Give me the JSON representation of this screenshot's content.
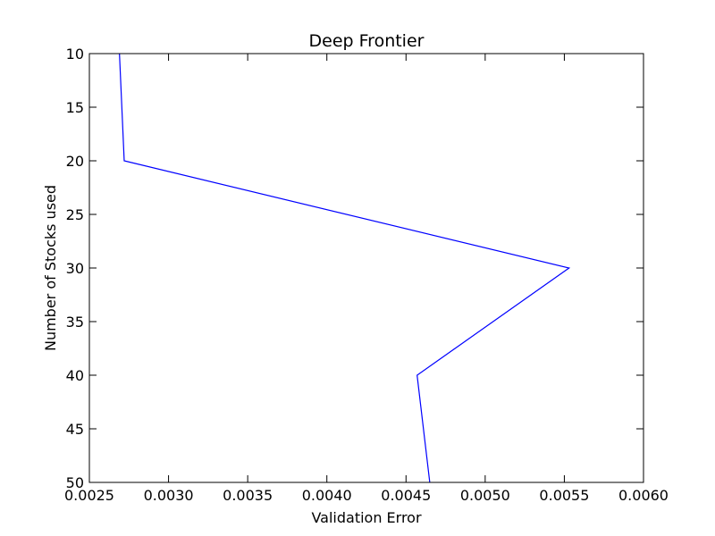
{
  "chart_data": {
    "type": "line",
    "title": "Deep Frontier",
    "xlabel": "Validation Error",
    "ylabel": "Number of Stocks used",
    "xlim": [
      0.0025,
      0.006
    ],
    "ylim": [
      10,
      50
    ],
    "y_inverted": true,
    "grid": false,
    "x_ticks": [
      0.0025,
      0.003,
      0.0035,
      0.004,
      0.0045,
      0.005,
      0.0055,
      0.006
    ],
    "x_tick_labels": [
      "0.0025",
      "0.0030",
      "0.0035",
      "0.0040",
      "0.0045",
      "0.0050",
      "0.0055",
      "0.0060"
    ],
    "y_ticks": [
      10,
      15,
      20,
      25,
      30,
      35,
      40,
      45,
      50
    ],
    "y_tick_labels": [
      "10",
      "15",
      "20",
      "25",
      "30",
      "35",
      "40",
      "45",
      "50"
    ],
    "series": [
      {
        "color": "#0000ff",
        "points": [
          {
            "x": 0.00269,
            "y": 10
          },
          {
            "x": 0.00272,
            "y": 20
          },
          {
            "x": 0.00553,
            "y": 30
          },
          {
            "x": 0.00457,
            "y": 40
          },
          {
            "x": 0.00465,
            "y": 50
          }
        ]
      }
    ]
  }
}
